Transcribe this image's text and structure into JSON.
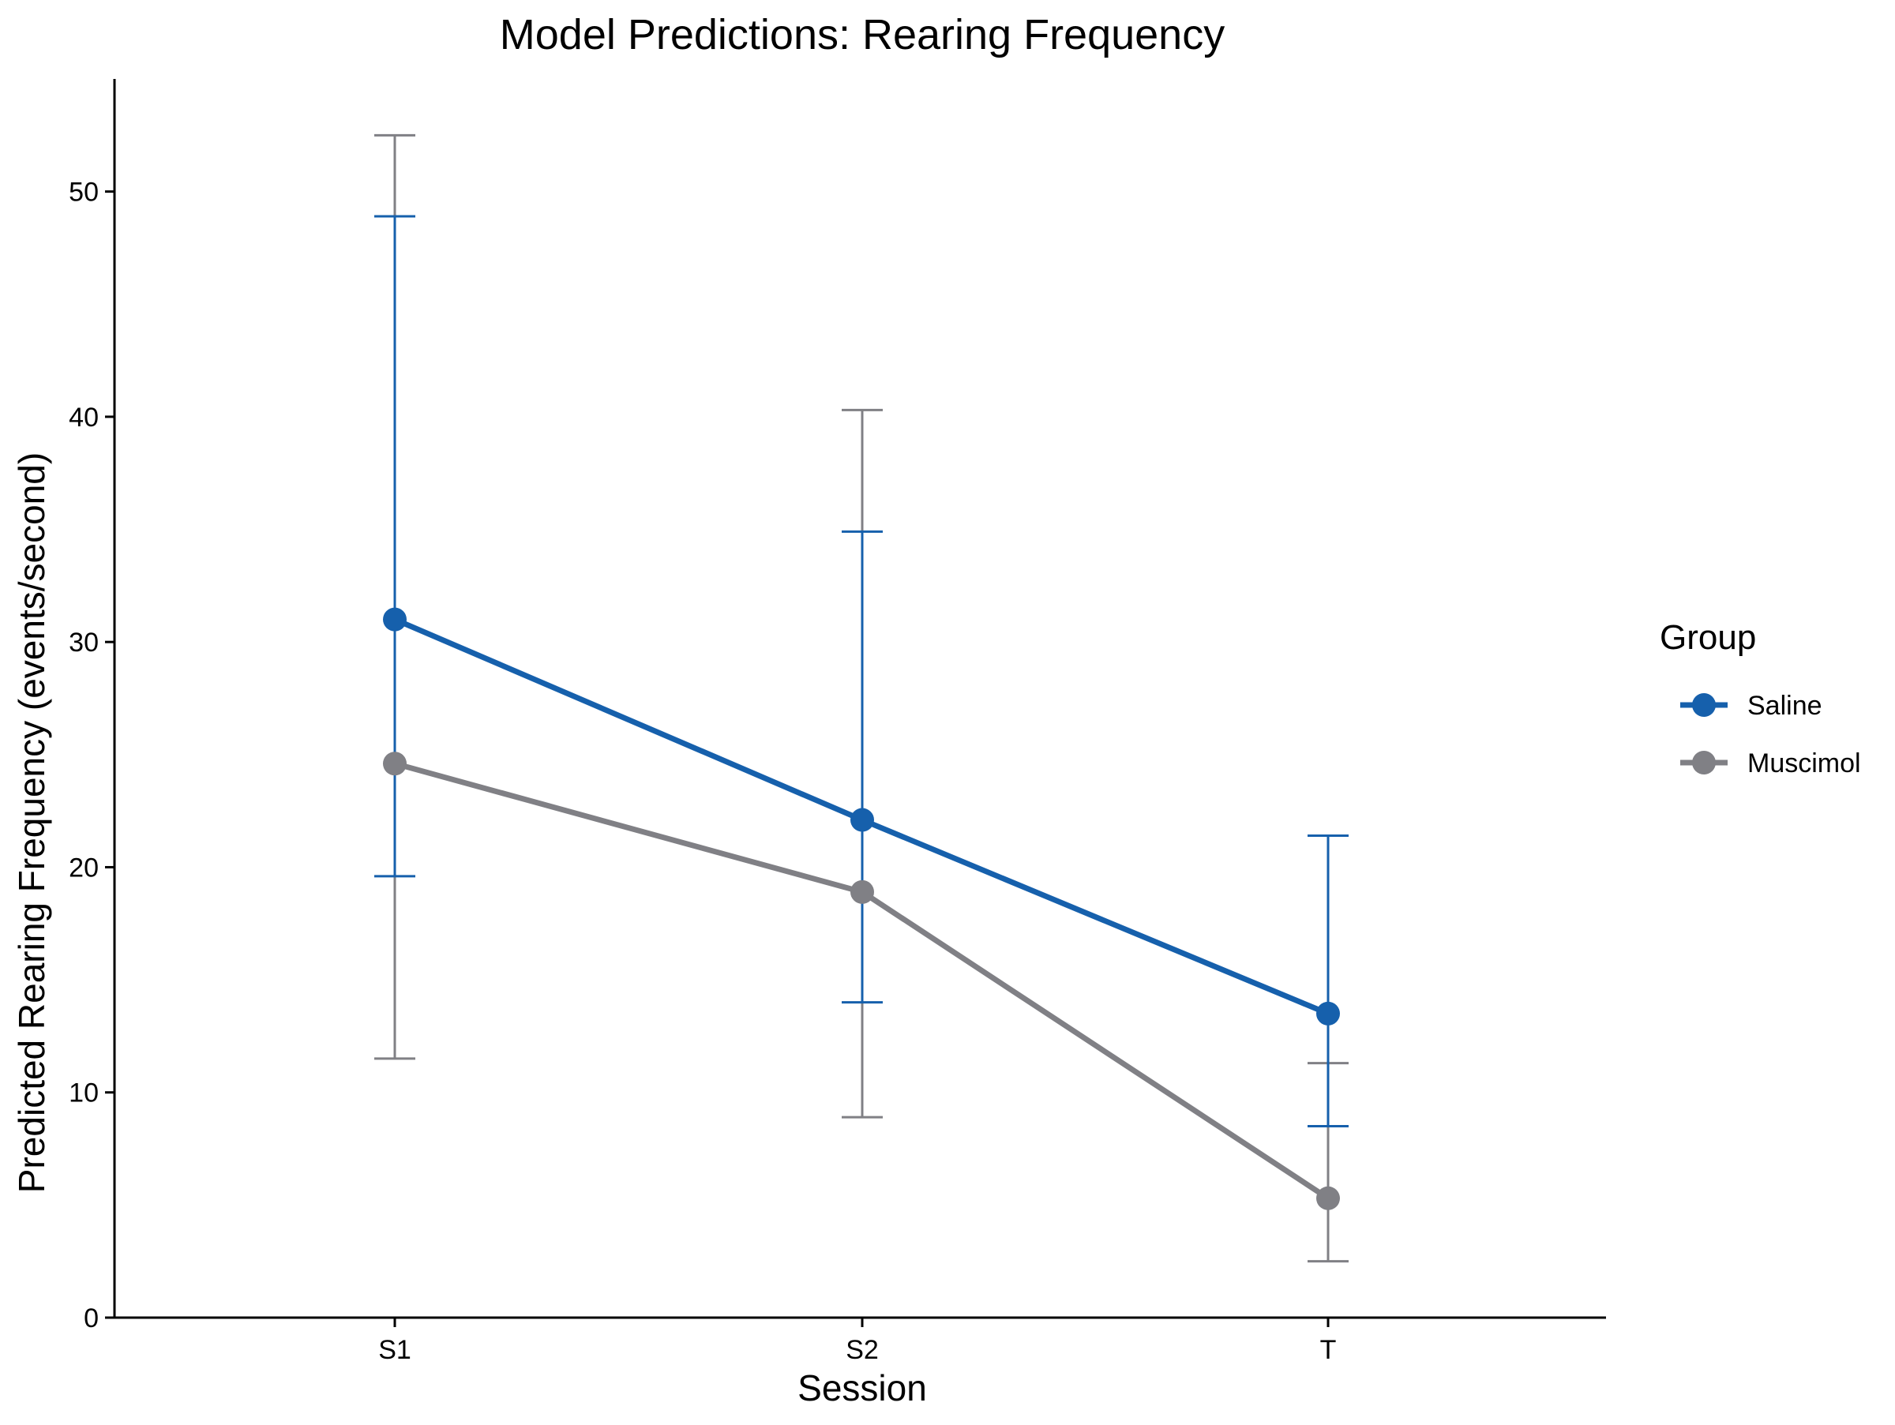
{
  "chart_data": {
    "type": "line",
    "title": "Model Predictions: Rearing Frequency",
    "xlabel": "Session",
    "ylabel": "Predicted Rearing Frequency (events/second)",
    "categories": [
      "S1",
      "S2",
      "T"
    ],
    "yticks": [
      0,
      10,
      20,
      30,
      40,
      50
    ],
    "ylim": [
      0,
      55
    ],
    "grid": false,
    "error_bars": true,
    "legend": {
      "title": "Group",
      "placement": "right"
    },
    "series": [
      {
        "name": "Saline",
        "color": "#1660AC",
        "values": [
          31.0,
          22.1,
          13.5
        ],
        "lower": [
          19.6,
          14.0,
          8.5
        ],
        "upper": [
          48.9,
          34.9,
          21.4
        ]
      },
      {
        "name": "Muscimol",
        "color": "#808085",
        "values": [
          24.6,
          18.9,
          5.3
        ],
        "lower": [
          11.5,
          8.9,
          2.5
        ],
        "upper": [
          52.5,
          40.3,
          11.3
        ]
      }
    ]
  }
}
